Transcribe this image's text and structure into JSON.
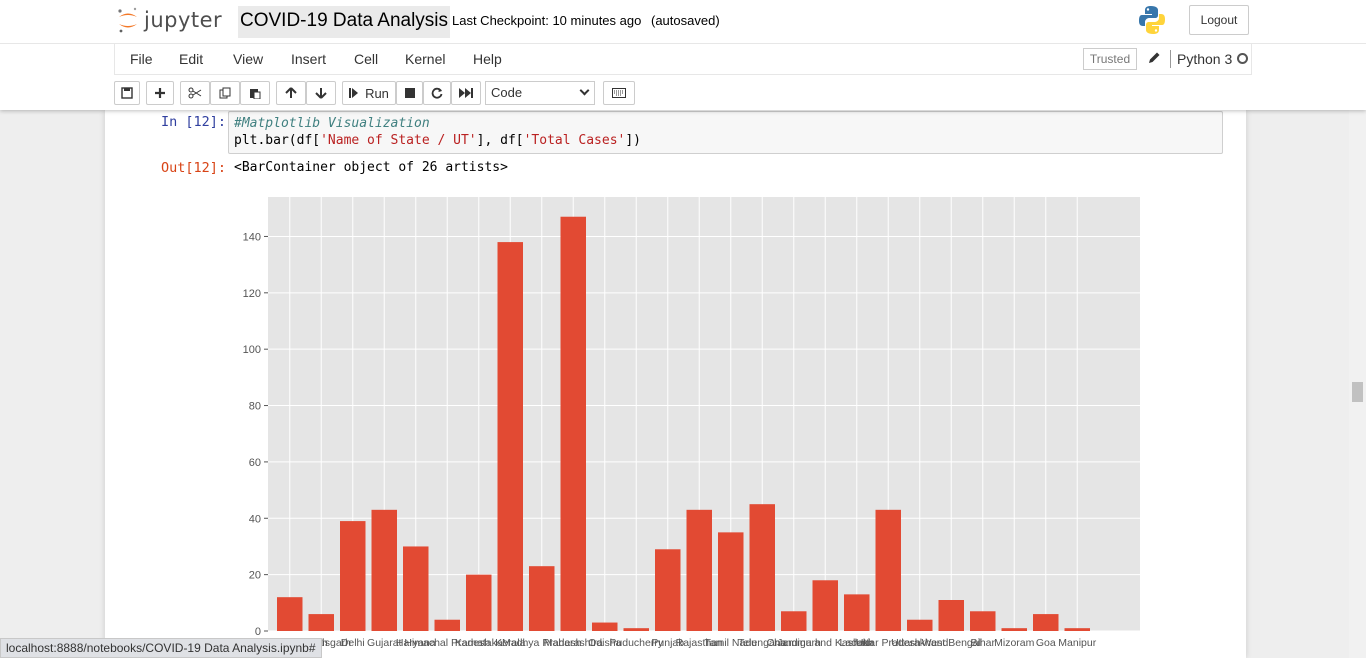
{
  "header": {
    "logo_text": "jupyter",
    "notebook_name": "COVID-19 Data Analysis",
    "checkpoint": "Last Checkpoint: 10 minutes ago",
    "autosave": "(autosaved)",
    "logout_label": "Logout"
  },
  "menu": {
    "items": [
      "File",
      "Edit",
      "View",
      "Insert",
      "Cell",
      "Kernel",
      "Help"
    ],
    "trusted_label": "Trusted",
    "kernel_name": "Python 3"
  },
  "toolbar": {
    "run_label": "Run",
    "cell_type": "Code"
  },
  "cell": {
    "in_prompt": "In [12]:",
    "code_comment": "#Matplotlib Visualization",
    "code_prefix": "plt.bar(df[",
    "code_str1": "'Name of State / UT'",
    "code_mid": "], df[",
    "code_str2": "'Total Cases'",
    "code_suffix": "])",
    "out_prompt": "Out[12]:",
    "out_text": "<BarContainer object of 26 artists>"
  },
  "status_url": "localhost:8888/notebooks/COVID-19 Data Analysis.ipynb#",
  "colors": {
    "bar": "#e24a33",
    "plot_bg": "#e5e5e5",
    "grid": "#ffffff"
  },
  "chart_data": {
    "type": "bar",
    "categories": [
      "Andhra Pradesh",
      "Chhattisgarh",
      "Delhi",
      "Gujarat",
      "Haryana",
      "Himachal Pradesh",
      "Karnataka",
      "Kerala",
      "Madhya Pradesh",
      "Maharashtra",
      "Odisha",
      "Puducherry",
      "Punjab",
      "Rajasthan",
      "Tamil Nadu",
      "Telengana",
      "Chandigarh",
      "Jammu and Kashmir",
      "Ladakh",
      "Uttar Pradesh",
      "Uttarakhand",
      "West Bengal",
      "Bihar",
      "Mizoram",
      "Goa",
      "Manipur"
    ],
    "values": [
      12,
      6,
      39,
      43,
      30,
      4,
      20,
      138,
      23,
      147,
      3,
      1,
      29,
      43,
      35,
      45,
      7,
      18,
      13,
      43,
      4,
      11,
      7,
      1,
      6,
      1
    ],
    "yticks": [
      0,
      20,
      40,
      60,
      80,
      100,
      120,
      140
    ],
    "ylim": [
      0,
      154
    ],
    "grid": true,
    "style": "ggplot"
  }
}
